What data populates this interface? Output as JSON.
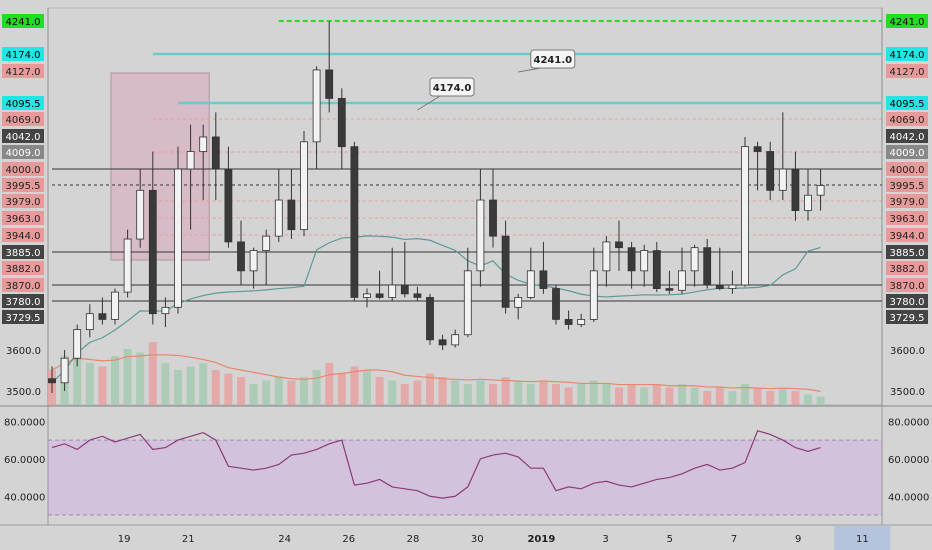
{
  "chart_data": {
    "type": "candlestick",
    "x_ticks": [
      {
        "label": "19",
        "i": 3
      },
      {
        "label": "21",
        "i": 9
      },
      {
        "label": "24",
        "i": 18
      },
      {
        "label": "26",
        "i": 24
      },
      {
        "label": "28",
        "i": 30
      },
      {
        "label": "30",
        "i": 36
      },
      {
        "label": "2019",
        "i": 42,
        "bold": true
      },
      {
        "label": "3",
        "i": 48
      },
      {
        "label": "5",
        "i": 54
      },
      {
        "label": "7",
        "i": 60
      },
      {
        "label": "9",
        "i": 66
      },
      {
        "label": "11",
        "i": 72,
        "highlight": true
      }
    ],
    "price_ticks": [
      3600.0,
      3500.0
    ],
    "rsi_ticks": [
      {
        "label": "80.0000",
        "v": 80
      },
      {
        "label": "60.0000",
        "v": 60
      },
      {
        "label": "40.0000",
        "v": 40
      }
    ],
    "level_tags": [
      {
        "label": "4241.0",
        "price": 4241.0,
        "bg": "#22dd22",
        "fg": "#000000",
        "line_color": "#22dd22",
        "line_style": "dashed",
        "line_start": 18
      },
      {
        "label": "4174.0",
        "price": 4174.0,
        "bg": "#e89a9a",
        "fg": "#222222",
        "line_color": null
      },
      {
        "label": "4174.0",
        "price": 4174.0,
        "bg": "#22e5e5",
        "fg": "#000000",
        "line_color": "#66cccc",
        "line_style": "solid",
        "line_start": 8
      },
      {
        "label": "4127.0",
        "price": 4127.0,
        "bg": "#e89a9a",
        "fg": "#222222",
        "line_color": null
      },
      {
        "label": "4095.5",
        "price": 4095.5,
        "bg": "#22e5e5",
        "fg": "#000000",
        "line_color": "#66cccc",
        "line_style": "solid",
        "line_start": 10
      },
      {
        "label": "4069.0",
        "price": 4069.0,
        "bg": "#e89a9a",
        "fg": "#222222",
        "line_color": "#ee9999",
        "line_style": "dotted",
        "line_start": 8
      },
      {
        "label": "4042.0",
        "price": 4042.0,
        "bg": "#444444",
        "fg": "#ffffff",
        "line_color": null
      },
      {
        "label": "4009.0",
        "price": 4009.0,
        "bg": "#888888",
        "fg": "#ffffff",
        "line_color": "#ee9999",
        "line_style": "dotted",
        "line_start": 8
      },
      {
        "label": "4000.0",
        "price": 4000.0,
        "bg": "#e89a9a",
        "fg": "#222222",
        "line_color": "#333333",
        "line_style": "solid",
        "line_start": 0
      },
      {
        "label": "3995.5",
        "price": 3995.5,
        "bg": "#e89a9a",
        "fg": "#222222",
        "line_color": "#333333",
        "line_style": "dotted",
        "line_start": 0
      },
      {
        "label": "3979.0",
        "price": 3979.0,
        "bg": "#e89a9a",
        "fg": "#222222",
        "line_color": "#ee9999",
        "line_style": "dotted",
        "line_start": 8
      },
      {
        "label": "3963.0",
        "price": 3963.0,
        "bg": "#e89a9a",
        "fg": "#222222",
        "line_color": "#ee9999",
        "line_style": "dotted",
        "line_start": 8
      },
      {
        "label": "3944.0",
        "price": 3944.0,
        "bg": "#e89a9a",
        "fg": "#222222",
        "line_color": "#ee9999",
        "line_style": "dotted",
        "line_start": 8
      },
      {
        "label": "3885.0",
        "price": 3885.0,
        "bg": "#444444",
        "fg": "#ffffff",
        "line_color": "#333333",
        "line_style": "solid",
        "line_start": 0
      },
      {
        "label": "3882.0",
        "price": 3882.0,
        "bg": "#e89a9a",
        "fg": "#222222",
        "line_color": null
      },
      {
        "label": "3870.0",
        "price": 3870.0,
        "bg": "#e89a9a",
        "fg": "#222222",
        "line_color": "#333333",
        "line_style": "solid",
        "line_start": 0
      },
      {
        "label": "3780.0",
        "price": 3780.0,
        "bg": "#444444",
        "fg": "#ffffff",
        "line_color": "#333333",
        "line_style": "solid",
        "line_start": 0
      },
      {
        "label": "3729.5",
        "price": 3729.5,
        "bg": "#444444",
        "fg": "#ffffff",
        "line_color": null
      }
    ],
    "callouts": [
      {
        "label": "4241.0",
        "price": 4241.0
      },
      {
        "label": "4174.0",
        "price": 4174.0
      }
    ],
    "candles": [
      {
        "o": 3530,
        "h": 3560,
        "l": 3495,
        "c": 3520
      },
      {
        "o": 3520,
        "h": 3600,
        "l": 3500,
        "c": 3580
      },
      {
        "o": 3580,
        "h": 3700,
        "l": 3560,
        "c": 3680
      },
      {
        "o": 3680,
        "h": 3770,
        "l": 3650,
        "c": 3740
      },
      {
        "o": 3740,
        "h": 3800,
        "l": 3700,
        "c": 3720
      },
      {
        "o": 3720,
        "h": 3850,
        "l": 3700,
        "c": 3830
      },
      {
        "o": 3830,
        "h": 3950,
        "l": 3800,
        "c": 3930
      },
      {
        "o": 3930,
        "h": 4000,
        "l": 3900,
        "c": 3990
      },
      {
        "o": 3990,
        "h": 4010,
        "l": 3700,
        "c": 3740
      },
      {
        "o": 3740,
        "h": 3800,
        "l": 3690,
        "c": 3760
      },
      {
        "o": 3760,
        "h": 4020,
        "l": 3740,
        "c": 4000
      },
      {
        "o": 4000,
        "h": 4060,
        "l": 3950,
        "c": 4010
      },
      {
        "o": 4010,
        "h": 4060,
        "l": 3980,
        "c": 4040
      },
      {
        "o": 4040,
        "h": 4080,
        "l": 3980,
        "c": 4000
      },
      {
        "o": 4000,
        "h": 4020,
        "l": 3900,
        "c": 3920
      },
      {
        "o": 3920,
        "h": 3960,
        "l": 3870,
        "c": 3880
      },
      {
        "o": 3880,
        "h": 3900,
        "l": 3850,
        "c": 3890
      },
      {
        "o": 3890,
        "h": 3950,
        "l": 3870,
        "c": 3940
      },
      {
        "o": 3940,
        "h": 4000,
        "l": 3920,
        "c": 3980
      },
      {
        "o": 3980,
        "h": 4000,
        "l": 3930,
        "c": 3950
      },
      {
        "o": 3950,
        "h": 4050,
        "l": 3940,
        "c": 4030
      },
      {
        "o": 4030,
        "h": 4140,
        "l": 4000,
        "c": 4130
      },
      {
        "o": 4130,
        "h": 4240,
        "l": 4080,
        "c": 4100
      },
      {
        "o": 4100,
        "h": 4110,
        "l": 4000,
        "c": 4020
      },
      {
        "o": 4020,
        "h": 4030,
        "l": 3780,
        "c": 3800
      },
      {
        "o": 3800,
        "h": 3850,
        "l": 3760,
        "c": 3820
      },
      {
        "o": 3820,
        "h": 3880,
        "l": 3790,
        "c": 3800
      },
      {
        "o": 3800,
        "h": 3900,
        "l": 3780,
        "c": 3870
      },
      {
        "o": 3870,
        "h": 3920,
        "l": 3800,
        "c": 3820
      },
      {
        "o": 3820,
        "h": 3860,
        "l": 3780,
        "c": 3800
      },
      {
        "o": 3800,
        "h": 3820,
        "l": 3620,
        "c": 3640
      },
      {
        "o": 3640,
        "h": 3660,
        "l": 3600,
        "c": 3620
      },
      {
        "o": 3620,
        "h": 3680,
        "l": 3610,
        "c": 3660
      },
      {
        "o": 3660,
        "h": 3900,
        "l": 3650,
        "c": 3880
      },
      {
        "o": 3880,
        "h": 4000,
        "l": 3860,
        "c": 3980
      },
      {
        "o": 3980,
        "h": 4000,
        "l": 3900,
        "c": 3940
      },
      {
        "o": 3940,
        "h": 3960,
        "l": 3740,
        "c": 3760
      },
      {
        "o": 3760,
        "h": 3820,
        "l": 3720,
        "c": 3800
      },
      {
        "o": 3800,
        "h": 3900,
        "l": 3790,
        "c": 3880
      },
      {
        "o": 3880,
        "h": 3920,
        "l": 3820,
        "c": 3850
      },
      {
        "o": 3850,
        "h": 3870,
        "l": 3700,
        "c": 3720
      },
      {
        "o": 3720,
        "h": 3750,
        "l": 3680,
        "c": 3700
      },
      {
        "o": 3700,
        "h": 3740,
        "l": 3690,
        "c": 3720
      },
      {
        "o": 3720,
        "h": 3900,
        "l": 3710,
        "c": 3880
      },
      {
        "o": 3880,
        "h": 3940,
        "l": 3860,
        "c": 3920
      },
      {
        "o": 3920,
        "h": 3960,
        "l": 3880,
        "c": 3900
      },
      {
        "o": 3900,
        "h": 3920,
        "l": 3850,
        "c": 3880
      },
      {
        "o": 3880,
        "h": 3910,
        "l": 3860,
        "c": 3890
      },
      {
        "o": 3890,
        "h": 3920,
        "l": 3830,
        "c": 3850
      },
      {
        "o": 3850,
        "h": 3880,
        "l": 3820,
        "c": 3840
      },
      {
        "o": 3840,
        "h": 3900,
        "l": 3820,
        "c": 3880
      },
      {
        "o": 3880,
        "h": 3910,
        "l": 3860,
        "c": 3900
      },
      {
        "o": 3900,
        "h": 3930,
        "l": 3850,
        "c": 3870
      },
      {
        "o": 3870,
        "h": 3900,
        "l": 3840,
        "c": 3850
      },
      {
        "o": 3850,
        "h": 3880,
        "l": 3820,
        "c": 3870
      },
      {
        "o": 3870,
        "h": 4040,
        "l": 3860,
        "c": 4020
      },
      {
        "o": 4020,
        "h": 4030,
        "l": 3990,
        "c": 4010
      },
      {
        "o": 4010,
        "h": 4030,
        "l": 3980,
        "c": 3990
      },
      {
        "o": 3990,
        "h": 4080,
        "l": 3980,
        "c": 4000
      },
      {
        "o": 4000,
        "h": 4010,
        "l": 3960,
        "c": 3970
      },
      {
        "o": 3970,
        "h": 4000,
        "l": 3960,
        "c": 3985
      },
      {
        "o": 3985,
        "h": 4000,
        "l": 3970,
        "c": 3995
      }
    ],
    "volume": [
      0.5,
      0.7,
      0.8,
      0.6,
      0.55,
      0.7,
      0.8,
      0.75,
      0.9,
      0.6,
      0.5,
      0.55,
      0.6,
      0.5,
      0.45,
      0.4,
      0.3,
      0.35,
      0.4,
      0.35,
      0.4,
      0.5,
      0.6,
      0.45,
      0.55,
      0.5,
      0.4,
      0.35,
      0.3,
      0.35,
      0.45,
      0.4,
      0.35,
      0.3,
      0.35,
      0.3,
      0.4,
      0.35,
      0.3,
      0.35,
      0.3,
      0.25,
      0.3,
      0.35,
      0.3,
      0.25,
      0.3,
      0.25,
      0.3,
      0.25,
      0.3,
      0.25,
      0.2,
      0.25,
      0.2,
      0.3,
      0.25,
      0.2,
      0.25,
      0.2,
      0.15,
      0.12
    ],
    "rsi_bands": [
      70,
      30
    ],
    "rsi": [
      66,
      68,
      65,
      70,
      72,
      69,
      71,
      73,
      65,
      66,
      70,
      72,
      74,
      70,
      56,
      55,
      54,
      55,
      57,
      62,
      63,
      65,
      68,
      70,
      46,
      47,
      49,
      45,
      44,
      43,
      40,
      39,
      40,
      45,
      60,
      62,
      63,
      61,
      55,
      55,
      43,
      45,
      44,
      47,
      48,
      46,
      45,
      47,
      49,
      50,
      52,
      55,
      57,
      54,
      55,
      58,
      75,
      73,
      70,
      66,
      64,
      66
    ]
  }
}
